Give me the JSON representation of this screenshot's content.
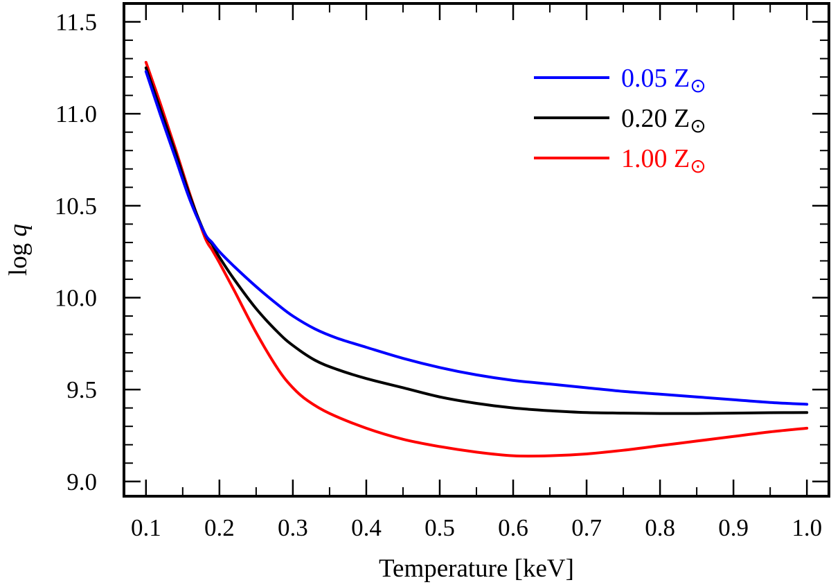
{
  "chart_data": {
    "type": "line",
    "title": "",
    "xlabel": "Temperature [keV]",
    "ylabel_prefix": "log ",
    "ylabel_var": "q",
    "xlim": [
      0.07,
      1.03
    ],
    "ylim": [
      8.92,
      11.6
    ],
    "x_ticks": [
      {
        "value": 0.1,
        "label": "0.1"
      },
      {
        "value": 0.2,
        "label": "0.2"
      },
      {
        "value": 0.3,
        "label": "0.3"
      },
      {
        "value": 0.4,
        "label": "0.4"
      },
      {
        "value": 0.5,
        "label": "0.5"
      },
      {
        "value": 0.6,
        "label": "0.6"
      },
      {
        "value": 0.7,
        "label": "0.7"
      },
      {
        "value": 0.8,
        "label": "0.8"
      },
      {
        "value": 0.9,
        "label": "0.9"
      },
      {
        "value": 1.0,
        "label": "1.0"
      }
    ],
    "x_minor_step": 0.05,
    "y_ticks": [
      {
        "value": 9.0,
        "label": "9.0"
      },
      {
        "value": 9.5,
        "label": "9.5"
      },
      {
        "value": 10.0,
        "label": "10.0"
      },
      {
        "value": 10.5,
        "label": "10.5"
      },
      {
        "value": 11.0,
        "label": "11.0"
      },
      {
        "value": 11.5,
        "label": "11.5"
      }
    ],
    "y_minor_step": 0.1,
    "grid": false,
    "legend_position": "top-right",
    "series": [
      {
        "name": "0.05 Z",
        "color": "#0000ff",
        "x": [
          0.1,
          0.12,
          0.14,
          0.16,
          0.18,
          0.19,
          0.2,
          0.22,
          0.25,
          0.28,
          0.3,
          0.33,
          0.36,
          0.4,
          0.45,
          0.5,
          0.55,
          0.6,
          0.65,
          0.7,
          0.75,
          0.8,
          0.85,
          0.9,
          0.95,
          1.0
        ],
        "y": [
          11.23,
          10.99,
          10.76,
          10.53,
          10.35,
          10.3,
          10.25,
          10.17,
          10.06,
          9.96,
          9.9,
          9.83,
          9.78,
          9.73,
          9.67,
          9.62,
          9.58,
          9.55,
          9.53,
          9.51,
          9.49,
          9.475,
          9.46,
          9.445,
          9.43,
          9.42
        ]
      },
      {
        "name": "0.20 Z",
        "color": "#000000",
        "x": [
          0.1,
          0.12,
          0.14,
          0.16,
          0.18,
          0.19,
          0.2,
          0.22,
          0.25,
          0.28,
          0.3,
          0.33,
          0.36,
          0.4,
          0.45,
          0.5,
          0.55,
          0.6,
          0.65,
          0.7,
          0.75,
          0.8,
          0.85,
          0.9,
          0.95,
          1.0
        ],
        "y": [
          11.25,
          11.02,
          10.79,
          10.55,
          10.35,
          10.29,
          10.22,
          10.1,
          9.94,
          9.81,
          9.74,
          9.66,
          9.61,
          9.56,
          9.51,
          9.46,
          9.425,
          9.4,
          9.385,
          9.375,
          9.372,
          9.37,
          9.37,
          9.372,
          9.374,
          9.375
        ]
      },
      {
        "name": "1.00 Z",
        "color": "#ff0000",
        "x": [
          0.1,
          0.12,
          0.14,
          0.16,
          0.18,
          0.19,
          0.2,
          0.22,
          0.25,
          0.28,
          0.3,
          0.32,
          0.35,
          0.4,
          0.45,
          0.5,
          0.55,
          0.6,
          0.65,
          0.7,
          0.75,
          0.8,
          0.85,
          0.9,
          0.95,
          1.0
        ],
        "y": [
          11.28,
          11.05,
          10.81,
          10.56,
          10.33,
          10.26,
          10.19,
          10.04,
          9.81,
          9.61,
          9.51,
          9.44,
          9.37,
          9.29,
          9.23,
          9.19,
          9.16,
          9.14,
          9.14,
          9.15,
          9.17,
          9.195,
          9.22,
          9.245,
          9.27,
          9.29
        ]
      }
    ],
    "legend_subscript_symbol": "⊙"
  }
}
